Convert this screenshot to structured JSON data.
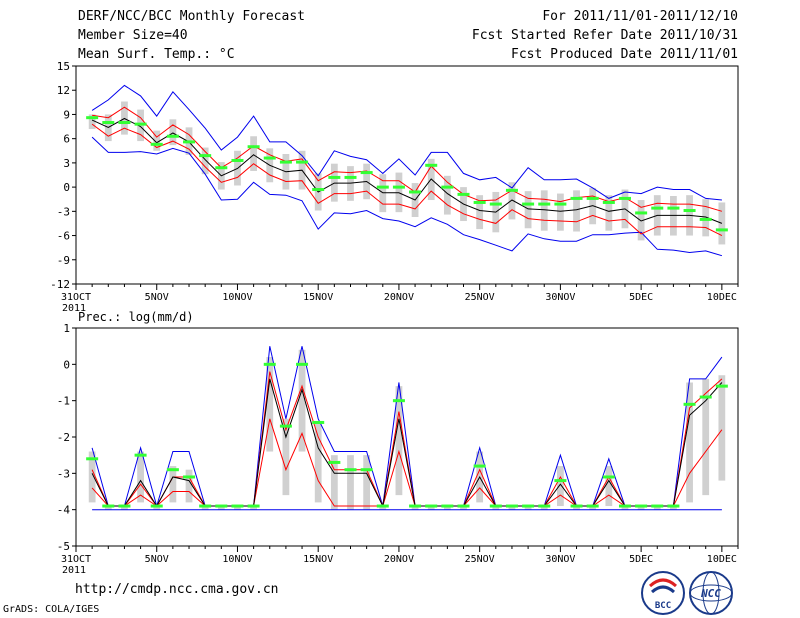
{
  "header": {
    "line1_left": "DERF/NCC/BCC Monthly Forecast",
    "line2_left": "Member Size=40",
    "line3_left": "Mean Surf. Temp.: °C",
    "line1_right": "For 2011/11/01-2011/12/10",
    "line2_right": "Fcst Started Refer Date 2011/10/31",
    "line3_right": "Fcst Produced Date 2011/11/01"
  },
  "footer": {
    "url": "http://cmdp.ncc.cma.gov.cn",
    "credit": "GrADS: COLA/IGES",
    "logo_bcc": "BCC",
    "logo_ncc": "NCC"
  },
  "chart_data": [
    {
      "type": "line",
      "title": "Mean Surf. Temp.: °C",
      "ylim": [
        -12,
        15
      ],
      "yticks": [
        "15",
        "12",
        "9",
        "6",
        "3",
        "0",
        "-3",
        "-6",
        "-9",
        "-12"
      ],
      "yticks_values": [
        15,
        12,
        9,
        6,
        3,
        0,
        -3,
        -6,
        -9,
        -12
      ],
      "xtick_labels": [
        "31OCT",
        "5NOV",
        "10NOV",
        "15NOV",
        "20NOV",
        "25NOV",
        "30NOV",
        "5DEC",
        "10DEC"
      ],
      "xtick_days": [
        0,
        5,
        10,
        15,
        20,
        25,
        30,
        35,
        40
      ],
      "year_label": "2011",
      "x": [
        1,
        2,
        3,
        4,
        5,
        6,
        7,
        8,
        9,
        10,
        11,
        12,
        13,
        14,
        15,
        16,
        17,
        18,
        19,
        20,
        21,
        22,
        23,
        24,
        25,
        26,
        27,
        28,
        29,
        30,
        31,
        32,
        33,
        34,
        35,
        36,
        37,
        38,
        39,
        40
      ],
      "series": [
        {
          "name": "max",
          "color": "#0000ee",
          "values": [
            9.5,
            10.8,
            12.6,
            11.3,
            8.8,
            11.8,
            9.6,
            7.3,
            4.6,
            6.2,
            8.8,
            5.6,
            5.6,
            3.9,
            1.4,
            4.5,
            3.8,
            3.4,
            1.7,
            3.5,
            1.5,
            4.3,
            4.3,
            1.7,
            0.9,
            1.2,
            -0.1,
            2.4,
            0.9,
            0.9,
            1.0,
            -0.1,
            -1.4,
            -0.6,
            -0.8,
            0.0,
            -0.3,
            -0.3,
            -1.4,
            -1.6
          ]
        },
        {
          "name": "min",
          "color": "#0000ee",
          "values": [
            6.2,
            4.3,
            4.3,
            4.4,
            4.1,
            4.8,
            4.2,
            1.6,
            -1.6,
            -1.5,
            0.6,
            -0.9,
            -1.0,
            -1.7,
            -5.2,
            -3.2,
            -3.3,
            -2.9,
            -3.9,
            -4.2,
            -4.9,
            -3.8,
            -4.6,
            -5.9,
            -6.5,
            -7.2,
            -7.9,
            -5.8,
            -6.4,
            -6.7,
            -6.7,
            -5.9,
            -5.9,
            -5.7,
            -5.6,
            -7.7,
            -7.8,
            -8.1,
            -7.9,
            -8.5
          ]
        },
        {
          "name": "upper",
          "color": "#ff0000",
          "values": [
            8.9,
            8.6,
            9.9,
            8.6,
            6.2,
            7.7,
            6.5,
            4.4,
            2.4,
            3.6,
            5.1,
            4.0,
            3.2,
            3.5,
            0.8,
            1.9,
            1.8,
            2.0,
            0.8,
            0.8,
            -0.6,
            2.6,
            0.6,
            -0.9,
            -1.7,
            -1.6,
            -0.4,
            -1.4,
            -1.5,
            -1.8,
            -1.3,
            -1.1,
            -1.8,
            -1.3,
            -2.5,
            -2.0,
            -2.1,
            -2.1,
            -2.4,
            -3.0
          ]
        },
        {
          "name": "lower",
          "color": "#ff0000",
          "values": [
            7.8,
            6.3,
            7.3,
            6.5,
            4.9,
            5.7,
            4.7,
            2.5,
            0.6,
            1.2,
            2.9,
            1.5,
            0.7,
            0.8,
            -2.0,
            -0.8,
            -0.8,
            -0.5,
            -2.1,
            -2.1,
            -2.7,
            -0.5,
            -2.2,
            -3.3,
            -4.0,
            -4.5,
            -2.8,
            -3.9,
            -4.1,
            -4.2,
            -4.3,
            -3.5,
            -4.2,
            -4.0,
            -5.8,
            -4.9,
            -4.9,
            -4.9,
            -5.0,
            -6.0
          ]
        },
        {
          "name": "mean",
          "color": "#000000",
          "values": [
            8.3,
            7.4,
            8.5,
            7.5,
            5.5,
            6.7,
            5.6,
            3.4,
            1.4,
            2.3,
            4.0,
            2.7,
            1.9,
            2.1,
            -0.6,
            0.5,
            0.5,
            0.7,
            -0.7,
            -0.7,
            -1.6,
            1.0,
            -0.8,
            -2.1,
            -2.9,
            -3.1,
            -1.6,
            -2.7,
            -2.8,
            -3.0,
            -2.8,
            -2.3,
            -3.0,
            -2.7,
            -4.2,
            -3.5,
            -3.5,
            -3.5,
            -3.7,
            -4.5
          ]
        },
        {
          "name": "observed",
          "color": "#33ff33",
          "values": [
            8.6,
            8.0,
            8.0,
            7.8,
            5.3,
            6.3,
            5.6,
            3.9,
            2.4,
            3.3,
            5.0,
            3.6,
            3.1,
            3.1,
            -0.3,
            1.2,
            1.2,
            1.8,
            0.0,
            0.0,
            -0.6,
            2.7,
            0.0,
            -0.9,
            -1.9,
            -2.1,
            -0.4,
            -2.1,
            -2.1,
            -2.1,
            -1.4,
            -1.4,
            -1.9,
            -1.4,
            -3.2,
            -2.6,
            -2.6,
            -2.9,
            -4.0,
            -5.3
          ]
        },
        {
          "name": "box_high",
          "color": "#d0d0d0",
          "values": [
            9.0,
            9.0,
            10.6,
            9.6,
            7.0,
            8.4,
            7.4,
            4.9,
            3.1,
            4.5,
            6.3,
            4.8,
            4.1,
            4.5,
            1.7,
            2.9,
            2.6,
            2.9,
            1.6,
            1.8,
            0.5,
            3.5,
            1.4,
            0.0,
            -1.0,
            -0.6,
            0.6,
            -0.5,
            -0.4,
            -0.8,
            -0.4,
            -0.1,
            -1.0,
            -0.3,
            -1.6,
            -1.0,
            -1.1,
            -1.0,
            -1.5,
            -1.9
          ]
        },
        {
          "name": "box_low",
          "color": "#d0d0d0",
          "values": [
            7.2,
            5.7,
            6.5,
            5.7,
            4.5,
            5.2,
            4.0,
            1.6,
            -0.3,
            0.2,
            2.0,
            0.6,
            -0.3,
            -0.3,
            -2.9,
            -1.8,
            -1.7,
            -1.5,
            -3.1,
            -3.1,
            -3.7,
            -1.6,
            -3.4,
            -4.2,
            -5.2,
            -5.6,
            -4.0,
            -5.1,
            -5.4,
            -5.4,
            -5.5,
            -4.6,
            -5.4,
            -5.1,
            -6.6,
            -6.0,
            -6.0,
            -6.0,
            -6.1,
            -7.1
          ]
        }
      ]
    },
    {
      "type": "line",
      "title": "Prec.: log(mm/d)",
      "ylim": [
        -5,
        1
      ],
      "yticks": [
        "1",
        "0",
        "-1",
        "-2",
        "-3",
        "-4",
        "-5"
      ],
      "yticks_values": [
        1,
        0,
        -1,
        -2,
        -3,
        -4,
        -5
      ],
      "xtick_labels": [
        "31OCT",
        "5NOV",
        "10NOV",
        "15NOV",
        "20NOV",
        "25NOV",
        "30NOV",
        "5DEC",
        "10DEC"
      ],
      "xtick_days": [
        0,
        5,
        10,
        15,
        20,
        25,
        30,
        35,
        40
      ],
      "year_label": "2011",
      "x": [
        1,
        2,
        3,
        4,
        5,
        6,
        7,
        8,
        9,
        10,
        11,
        12,
        13,
        14,
        15,
        16,
        17,
        18,
        19,
        20,
        21,
        22,
        23,
        24,
        25,
        26,
        27,
        28,
        29,
        30,
        31,
        32,
        33,
        34,
        35,
        36,
        37,
        38,
        39,
        40
      ],
      "series": [
        {
          "name": "max",
          "color": "#0000ee",
          "values": [
            -2.3,
            -3.9,
            -3.9,
            -2.3,
            -3.9,
            -2.4,
            -2.4,
            -3.9,
            -3.9,
            -3.9,
            -3.9,
            0.5,
            -1.5,
            0.5,
            -1.5,
            -2.4,
            -2.4,
            -2.4,
            -3.9,
            -0.5,
            -3.9,
            -3.9,
            -3.9,
            -3.9,
            -2.3,
            -3.9,
            -3.9,
            -3.9,
            -3.9,
            -2.5,
            -3.9,
            -3.9,
            -2.6,
            -3.9,
            -3.9,
            -3.9,
            -3.9,
            -0.4,
            -0.4,
            0.2
          ]
        },
        {
          "name": "min",
          "color": "#0000ee",
          "values": [
            -4.0,
            -4.0,
            -4.0,
            -4.0,
            -4.0,
            -4.0,
            -4.0,
            -4.0,
            -4.0,
            -4.0,
            -4.0,
            -4.0,
            -4.0,
            -4.0,
            -4.0,
            -4.0,
            -4.0,
            -4.0,
            -4.0,
            -4.0,
            -4.0,
            -4.0,
            -4.0,
            -4.0,
            -4.0,
            -4.0,
            -4.0,
            -4.0,
            -4.0,
            -4.0,
            -4.0,
            -4.0,
            -4.0,
            -4.0,
            -4.0,
            -4.0,
            -4.0,
            -4.0,
            -4.0,
            -4.0
          ]
        },
        {
          "name": "upper",
          "color": "#ff0000",
          "values": [
            -2.9,
            -3.9,
            -3.9,
            -3.3,
            -3.9,
            -3.1,
            -3.1,
            -3.9,
            -3.9,
            -3.9,
            -3.9,
            -0.2,
            -1.8,
            -0.6,
            -2.0,
            -2.9,
            -2.9,
            -2.9,
            -3.9,
            -1.3,
            -3.9,
            -3.9,
            -3.9,
            -3.9,
            -2.9,
            -3.9,
            -3.9,
            -3.9,
            -3.9,
            -3.1,
            -3.9,
            -3.9,
            -3.1,
            -3.9,
            -3.9,
            -3.9,
            -3.9,
            -1.2,
            -0.8,
            -0.4
          ]
        },
        {
          "name": "lower",
          "color": "#ff0000",
          "values": [
            -3.4,
            -3.9,
            -3.9,
            -3.6,
            -3.9,
            -3.5,
            -3.5,
            -3.9,
            -3.9,
            -3.9,
            -3.9,
            -1.5,
            -2.9,
            -1.9,
            -3.2,
            -3.9,
            -3.9,
            -3.9,
            -3.9,
            -2.4,
            -3.9,
            -3.9,
            -3.9,
            -3.9,
            -3.4,
            -3.9,
            -3.9,
            -3.9,
            -3.9,
            -3.6,
            -3.9,
            -3.9,
            -3.6,
            -3.9,
            -3.9,
            -3.9,
            -3.9,
            -3.0,
            -2.4,
            -1.8
          ]
        },
        {
          "name": "mean",
          "color": "#000000",
          "values": [
            -3.0,
            -3.9,
            -3.9,
            -3.2,
            -3.9,
            -3.1,
            -3.2,
            -3.9,
            -3.9,
            -3.9,
            -3.9,
            -0.4,
            -2.0,
            -0.7,
            -2.3,
            -3.0,
            -3.0,
            -3.0,
            -3.9,
            -1.5,
            -3.9,
            -3.9,
            -3.9,
            -3.9,
            -3.1,
            -3.9,
            -3.9,
            -3.9,
            -3.9,
            -3.3,
            -3.9,
            -3.9,
            -3.2,
            -3.9,
            -3.9,
            -3.9,
            -3.9,
            -1.4,
            -1.0,
            -0.5
          ]
        },
        {
          "name": "observed",
          "color": "#33ff33",
          "values": [
            -2.6,
            -3.9,
            -3.9,
            -2.5,
            -3.9,
            -2.9,
            -3.1,
            -3.9,
            -3.9,
            -3.9,
            -3.9,
            0.0,
            -1.7,
            0.0,
            -1.6,
            -2.7,
            -2.9,
            -2.9,
            -3.9,
            -1.0,
            -3.9,
            -3.9,
            -3.9,
            -3.9,
            -2.8,
            -3.9,
            -3.9,
            -3.9,
            -3.9,
            -3.2,
            -3.9,
            -3.9,
            -3.1,
            -3.9,
            -3.9,
            -3.9,
            -3.9,
            -1.1,
            -0.9,
            -0.6
          ]
        },
        {
          "name": "box_high",
          "color": "#d0d0d0",
          "values": [
            -2.4,
            -3.9,
            -3.9,
            -2.4,
            -3.9,
            -2.8,
            -2.9,
            -3.9,
            -3.9,
            -3.9,
            -3.9,
            0.2,
            -1.5,
            0.4,
            -1.6,
            -2.5,
            -2.5,
            -2.5,
            -3.9,
            -0.6,
            -3.9,
            -3.9,
            -3.9,
            -3.9,
            -2.4,
            -3.9,
            -3.9,
            -3.9,
            -3.9,
            -2.8,
            -3.9,
            -3.9,
            -2.8,
            -3.9,
            -3.9,
            -3.9,
            -3.9,
            -0.5,
            -0.4,
            -0.3
          ]
        },
        {
          "name": "box_low",
          "color": "#d0d0d0",
          "values": [
            -3.8,
            -4.0,
            -4.0,
            -3.8,
            -4.0,
            -3.8,
            -3.8,
            -4.0,
            -4.0,
            -4.0,
            -4.0,
            -2.4,
            -3.6,
            -2.4,
            -3.8,
            -4.0,
            -4.0,
            -4.0,
            -4.0,
            -3.6,
            -4.0,
            -4.0,
            -4.0,
            -4.0,
            -3.8,
            -4.0,
            -4.0,
            -4.0,
            -4.0,
            -3.9,
            -4.0,
            -4.0,
            -3.9,
            -4.0,
            -4.0,
            -4.0,
            -4.0,
            -3.8,
            -3.6,
            -3.2
          ]
        }
      ]
    }
  ]
}
